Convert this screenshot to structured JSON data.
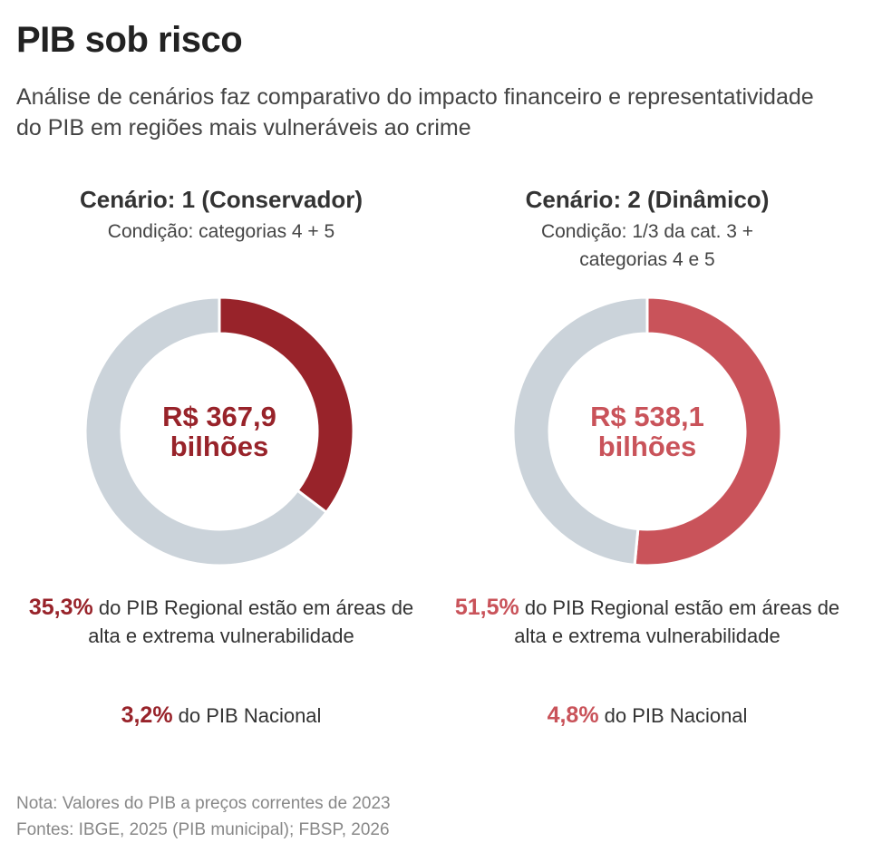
{
  "title": "PIB sob risco",
  "subtitle": "Análise de cenários faz comparativo do impacto financeiro e representatividade do PIB em regiões mais vulneráveis ao crime",
  "colors": {
    "scenario_1": "#98232a",
    "scenario_2": "#c9535a",
    "remainder": "#cbd3da"
  },
  "scenarios": [
    {
      "title": "Cenário: 1 (Conservador)",
      "condition": "Condição: categorias 4 + 5",
      "center_value": "R$ 367,9",
      "center_unit": "bilhões",
      "regional_pct": "35,3%",
      "regional_text": "do PIB Regional estão em áreas de alta e extrema vulnerabilidade",
      "national_pct": "3,2%",
      "national_text": "do PIB Nacional"
    },
    {
      "title": "Cenário: 2 (Dinâmico)",
      "condition": "Condição: 1/3 da cat. 3 + categorias 4 e 5",
      "center_value": "R$ 538,1",
      "center_unit": "bilhões",
      "regional_pct": "51,5%",
      "regional_text": "do PIB Regional estão em áreas de alta e extrema vulnerabilidade",
      "national_pct": "4,8%",
      "national_text": "do PIB Nacional"
    }
  ],
  "chart_data": [
    {
      "type": "pie",
      "title": "Cenário: 1 (Conservador)",
      "slices": [
        {
          "label": "",
          "value": 35.3,
          "color": "#98232a"
        },
        {
          "label": "",
          "value": 64.7,
          "color": "#cbd3da"
        }
      ]
    },
    {
      "type": "pie",
      "title": "Cenário: 2 (Dinâmico)",
      "slices": [
        {
          "label": "",
          "value": 51.5,
          "color": "#c9535a"
        },
        {
          "label": "",
          "value": 48.5,
          "color": "#cbd3da"
        }
      ]
    }
  ],
  "note": {
    "line1": "Nota: Valores do PIB a preços correntes de 2023",
    "line2": "Fontes: IBGE, 2025 (PIB municipal); FBSP, 2026"
  }
}
